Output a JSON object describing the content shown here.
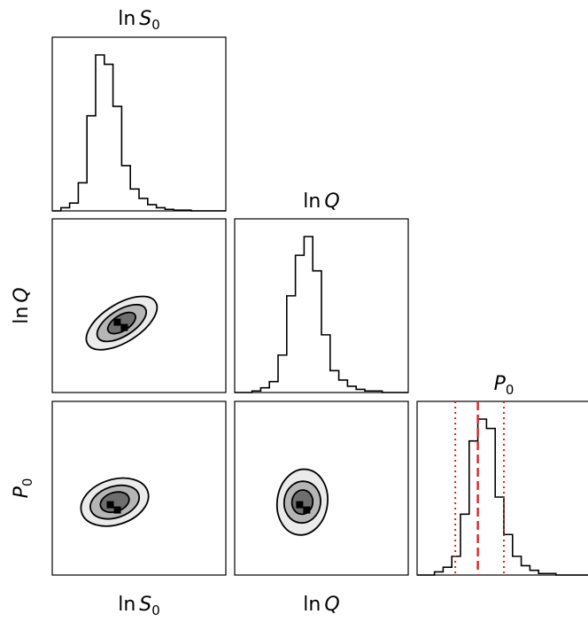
{
  "chart_data": {
    "type": "corner",
    "parameters": [
      {
        "key": "lnS0",
        "label_base": "ln",
        "label_var": "S",
        "label_sub": "0"
      },
      {
        "key": "lnQ",
        "label_base": "ln",
        "label_var": "Q",
        "label_sub": ""
      },
      {
        "key": "P0",
        "label_base": "",
        "label_var": "P",
        "label_sub": "0"
      }
    ],
    "ticks_shown": false,
    "histograms": [
      {
        "param": "lnS0",
        "bin_edges": [
          0.0,
          0.05,
          0.1,
          0.15,
          0.2,
          0.25,
          0.3,
          0.35,
          0.4,
          0.45,
          0.5,
          0.55,
          0.6,
          0.65,
          0.7,
          0.75,
          0.8,
          0.85,
          0.9,
          0.95,
          1.0
        ],
        "counts": [
          0.0,
          0.02,
          0.05,
          0.18,
          0.61,
          1.0,
          0.94,
          0.67,
          0.29,
          0.14,
          0.08,
          0.04,
          0.02,
          0.01,
          0.005,
          0.005,
          0.0,
          0.0,
          0.0,
          0.0
        ]
      },
      {
        "param": "lnQ",
        "bin_edges": [
          0.0,
          0.05,
          0.1,
          0.15,
          0.2,
          0.25,
          0.3,
          0.35,
          0.4,
          0.45,
          0.5,
          0.55,
          0.6,
          0.65,
          0.7,
          0.75,
          0.8,
          0.85,
          0.9,
          0.95,
          1.0
        ],
        "counts": [
          0.0,
          0.0,
          0.01,
          0.03,
          0.07,
          0.24,
          0.62,
          0.88,
          1.0,
          0.78,
          0.37,
          0.14,
          0.08,
          0.04,
          0.02,
          0.01,
          0.01,
          0.0,
          0.0,
          0.0
        ]
      },
      {
        "param": "P0",
        "bin_edges": [
          0.0,
          0.05,
          0.1,
          0.15,
          0.2,
          0.25,
          0.3,
          0.35,
          0.4,
          0.45,
          0.5,
          0.55,
          0.6,
          0.65,
          0.7,
          0.75,
          0.8,
          0.85,
          0.9,
          0.95,
          1.0
        ],
        "counts": [
          0.0,
          0.0,
          0.02,
          0.05,
          0.12,
          0.39,
          0.86,
          1.0,
          0.94,
          0.5,
          0.26,
          0.12,
          0.06,
          0.03,
          0.01,
          0.01,
          0.0,
          0.0,
          0.0,
          0.0
        ],
        "quantiles": [
          0.22,
          0.35,
          0.5
        ]
      }
    ],
    "contours": [
      {
        "x": "lnS0",
        "y": "lnQ",
        "center": [
          0.4,
          0.6
        ],
        "levels": [
          {
            "rx": 0.11,
            "ry": 0.23,
            "rotate_deg": 58,
            "fill": "#ebebeb"
          },
          {
            "rx": 0.075,
            "ry": 0.16,
            "rotate_deg": 58,
            "fill": "#b5b5b5"
          },
          {
            "rx": 0.045,
            "ry": 0.09,
            "rotate_deg": 58,
            "fill": "#6e6e6e"
          }
        ],
        "peak": [
          0.4,
          0.6
        ]
      },
      {
        "x": "lnS0",
        "y": "P0",
        "center": [
          0.36,
          0.58
        ],
        "levels": [
          {
            "rx": 0.2,
            "ry": 0.13,
            "rotate_deg": -18,
            "fill": "#ebebeb"
          },
          {
            "rx": 0.145,
            "ry": 0.09,
            "rotate_deg": -18,
            "fill": "#b5b5b5"
          },
          {
            "rx": 0.085,
            "ry": 0.055,
            "rotate_deg": -18,
            "fill": "#6e6e6e"
          }
        ],
        "peak": [
          0.36,
          0.6
        ]
      },
      {
        "x": "lnQ",
        "y": "P0",
        "center": [
          0.39,
          0.58
        ],
        "levels": [
          {
            "rx": 0.145,
            "ry": 0.19,
            "rotate_deg": 8,
            "fill": "#ebebeb"
          },
          {
            "rx": 0.105,
            "ry": 0.12,
            "rotate_deg": 8,
            "fill": "#b5b5b5"
          },
          {
            "rx": 0.06,
            "ry": 0.07,
            "rotate_deg": 8,
            "fill": "#6e6e6e"
          }
        ],
        "peak": [
          0.4,
          0.6
        ]
      }
    ],
    "colors": {
      "axes": "#000000",
      "histogram": "#000000",
      "quantile": "#d62728",
      "peak": "#000000"
    }
  }
}
